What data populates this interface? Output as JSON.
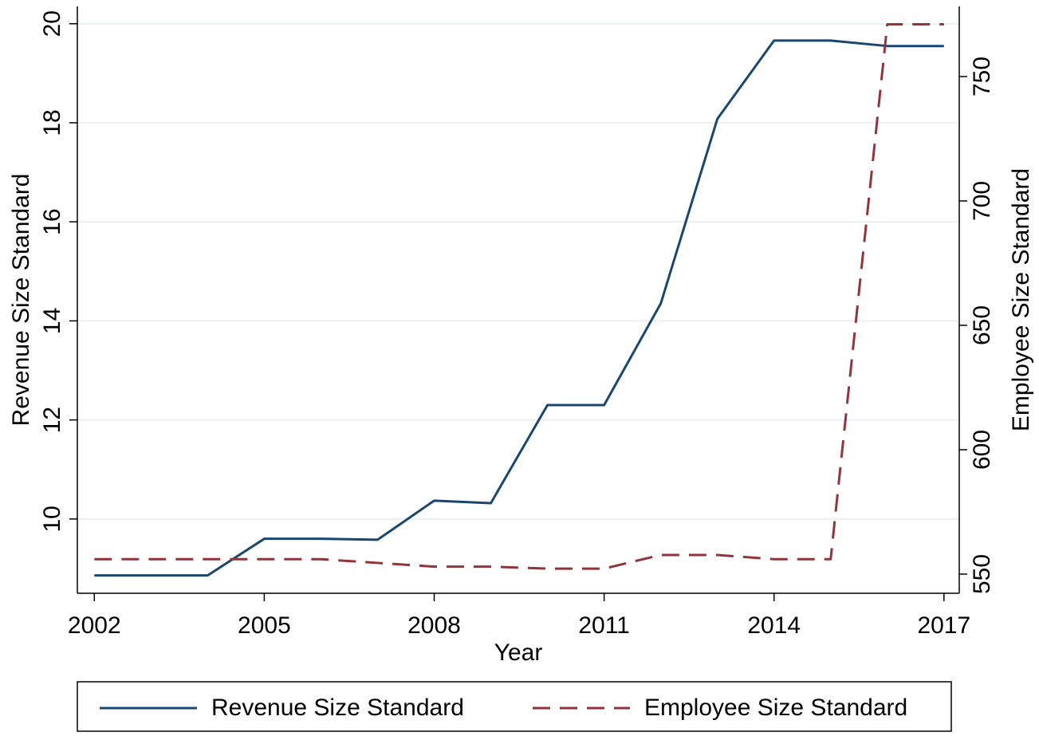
{
  "chart_data": {
    "type": "line",
    "xlabel": "Year",
    "ylabel": "Revenue Size Standard",
    "y2label": "Employee Size Standard",
    "x": [
      2002,
      2003,
      2004,
      2005,
      2006,
      2007,
      2008,
      2009,
      2010,
      2011,
      2012,
      2013,
      2014,
      2015,
      2016,
      2017
    ],
    "series": [
      {
        "name": "Revenue Size Standard",
        "color": "#1a476f",
        "style": "solid",
        "axis": "y",
        "values": [
          8.86,
          8.86,
          8.86,
          9.6,
          9.6,
          9.58,
          10.37,
          10.32,
          12.3,
          12.3,
          14.35,
          18.08,
          19.66,
          19.66,
          19.55,
          19.55
        ]
      },
      {
        "name": "Employee Size Standard",
        "color": "#90353b",
        "style": "dashed",
        "axis": "y2",
        "values": [
          556,
          556,
          556,
          556,
          556,
          554.5,
          553,
          553,
          552.2,
          552.2,
          557.7,
          557.7,
          556,
          556,
          771,
          771
        ]
      }
    ],
    "xlim": [
      2001.7,
      2017.27
    ],
    "xticks": [
      2002,
      2005,
      2008,
      2011,
      2014,
      2017
    ],
    "ylim": [
      8.5,
      20.35
    ],
    "yticks": [
      10,
      12,
      14,
      16,
      18,
      20
    ],
    "y2lim": [
      542.3,
      778.2
    ],
    "y2ticks": [
      550,
      600,
      650,
      700,
      750
    ],
    "grid": true,
    "legend": "bottom"
  }
}
